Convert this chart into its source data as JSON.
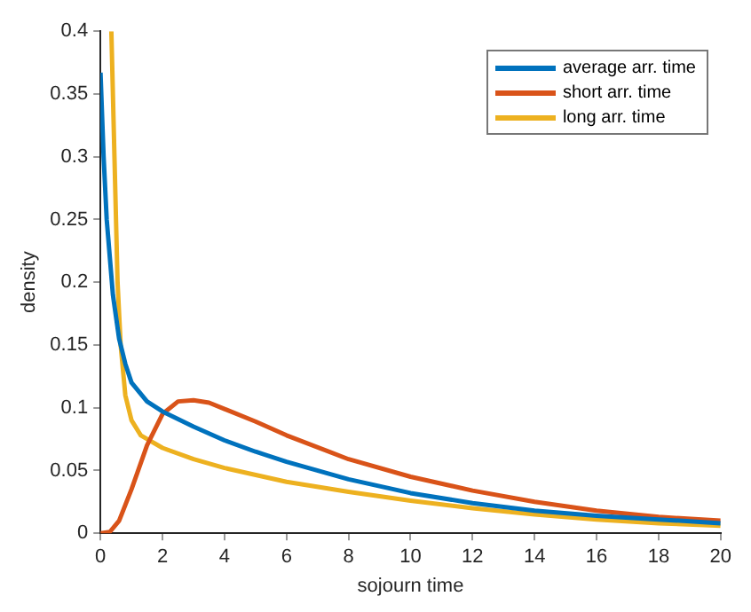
{
  "chart_data": {
    "type": "line",
    "xlabel": "sojourn time",
    "ylabel": "density",
    "xlim": [
      0,
      20
    ],
    "xticks": [
      0,
      2,
      4,
      6,
      8,
      10,
      12,
      14,
      16,
      18,
      20
    ],
    "ylim": [
      0,
      0.4
    ],
    "yticks": [
      0,
      0.05,
      0.1,
      0.15,
      0.2,
      0.25,
      0.3,
      0.35,
      0.4
    ],
    "legend": "top right",
    "grid": false,
    "marker": "none",
    "line_style": "solid",
    "series": [
      {
        "name": "average arr. time",
        "color": "#0072bd",
        "x": [
          0,
          0.1,
          0.2,
          0.4,
          0.6,
          0.8,
          1,
          1.5,
          2,
          3,
          4,
          5,
          6,
          8,
          10,
          12,
          14,
          16,
          18,
          20
        ],
        "values": [
          0.367,
          0.3,
          0.25,
          0.19,
          0.155,
          0.135,
          0.12,
          0.105,
          0.097,
          0.085,
          0.074,
          0.065,
          0.057,
          0.043,
          0.032,
          0.024,
          0.018,
          0.014,
          0.011,
          0.008
        ]
      },
      {
        "name": "short arr. time",
        "color": "#d95319",
        "x": [
          0,
          0.3,
          0.6,
          1,
          1.5,
          2,
          2.5,
          3,
          3.5,
          4,
          5,
          6,
          8,
          10,
          12,
          14,
          16,
          18,
          20
        ],
        "values": [
          0,
          0.001,
          0.01,
          0.035,
          0.07,
          0.095,
          0.105,
          0.106,
          0.104,
          0.099,
          0.089,
          0.078,
          0.059,
          0.045,
          0.034,
          0.025,
          0.018,
          0.013,
          0.01
        ]
      },
      {
        "name": "long arr. time",
        "color": "#edb120",
        "x": [
          0.35,
          0.45,
          0.55,
          0.65,
          0.8,
          1,
          1.3,
          2,
          3,
          4,
          6,
          8,
          10,
          12,
          14,
          16,
          18,
          20
        ],
        "values": [
          0.4,
          0.3,
          0.2,
          0.15,
          0.11,
          0.09,
          0.078,
          0.068,
          0.059,
          0.052,
          0.041,
          0.033,
          0.026,
          0.02,
          0.015,
          0.011,
          0.008,
          0.006
        ]
      }
    ]
  }
}
